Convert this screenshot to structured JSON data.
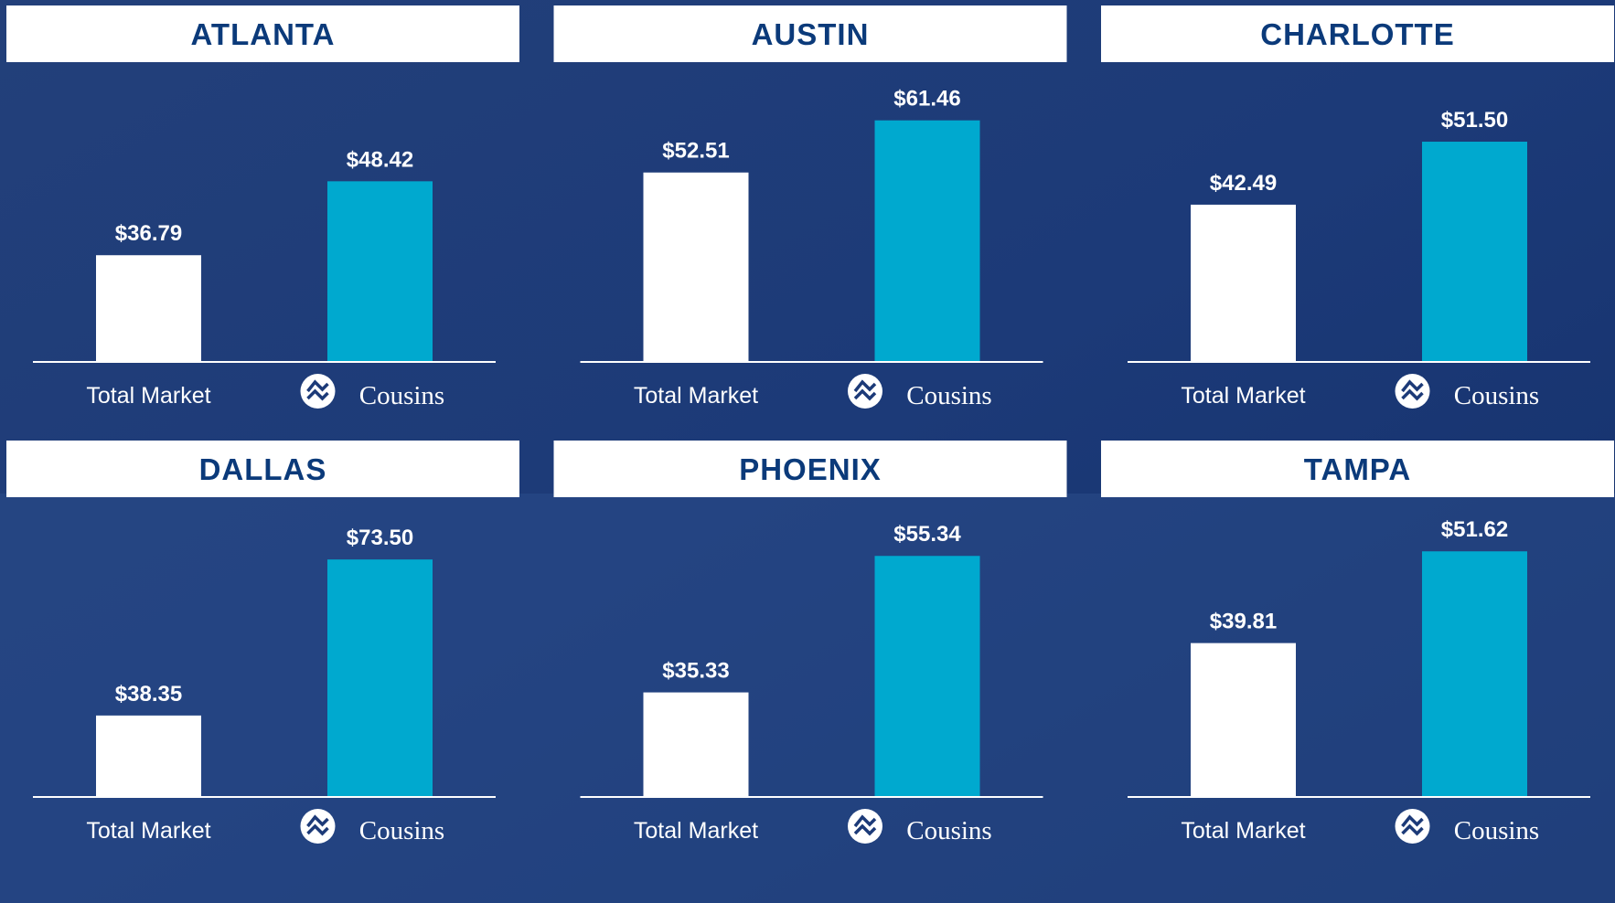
{
  "chart_data": [
    {
      "type": "bar",
      "title": "ATLANTA",
      "categories": [
        "Total Market",
        "Cousins"
      ],
      "values": [
        36.79,
        48.42
      ],
      "value_labels": [
        "$36.79",
        "$48.42"
      ],
      "colors": [
        "#ffffff",
        "#00a9cf"
      ],
      "ylim": [
        20,
        64
      ]
    },
    {
      "type": "bar",
      "title": "AUSTIN",
      "categories": [
        "Total Market",
        "Cousins"
      ],
      "values": [
        52.51,
        61.46
      ],
      "value_labels": [
        "$52.51",
        "$61.46"
      ],
      "colors": [
        "#ffffff",
        "#00a9cf"
      ],
      "ylim": [
        20,
        68
      ]
    },
    {
      "type": "bar",
      "title": "CHARLOTTE",
      "categories": [
        "Total Market",
        "Cousins"
      ],
      "values": [
        42.49,
        51.5
      ],
      "value_labels": [
        "$42.49",
        "$51.50"
      ],
      "colors": [
        "#ffffff",
        "#00a9cf"
      ],
      "ylim": [
        20,
        60
      ]
    },
    {
      "type": "bar",
      "title": "DALLAS",
      "categories": [
        "Total Market",
        "Cousins"
      ],
      "values": [
        38.35,
        73.5
      ],
      "value_labels": [
        "$38.35",
        "$73.50"
      ],
      "colors": [
        "#ffffff",
        "#00a9cf"
      ],
      "ylim": [
        20,
        83
      ]
    },
    {
      "type": "bar",
      "title": "PHOENIX",
      "categories": [
        "Total Market",
        "Cousins"
      ],
      "values": [
        35.33,
        55.34
      ],
      "value_labels": [
        "$35.33",
        "$55.34"
      ],
      "colors": [
        "#ffffff",
        "#00a9cf"
      ],
      "ylim": [
        20,
        61
      ]
    },
    {
      "type": "bar",
      "title": "TAMPA",
      "categories": [
        "Total Market",
        "Cousins"
      ],
      "values": [
        39.81,
        51.62
      ],
      "value_labels": [
        "$39.81",
        "$51.62"
      ],
      "colors": [
        "#ffffff",
        "#00a9cf"
      ],
      "ylim": [
        20,
        56
      ]
    }
  ]
}
